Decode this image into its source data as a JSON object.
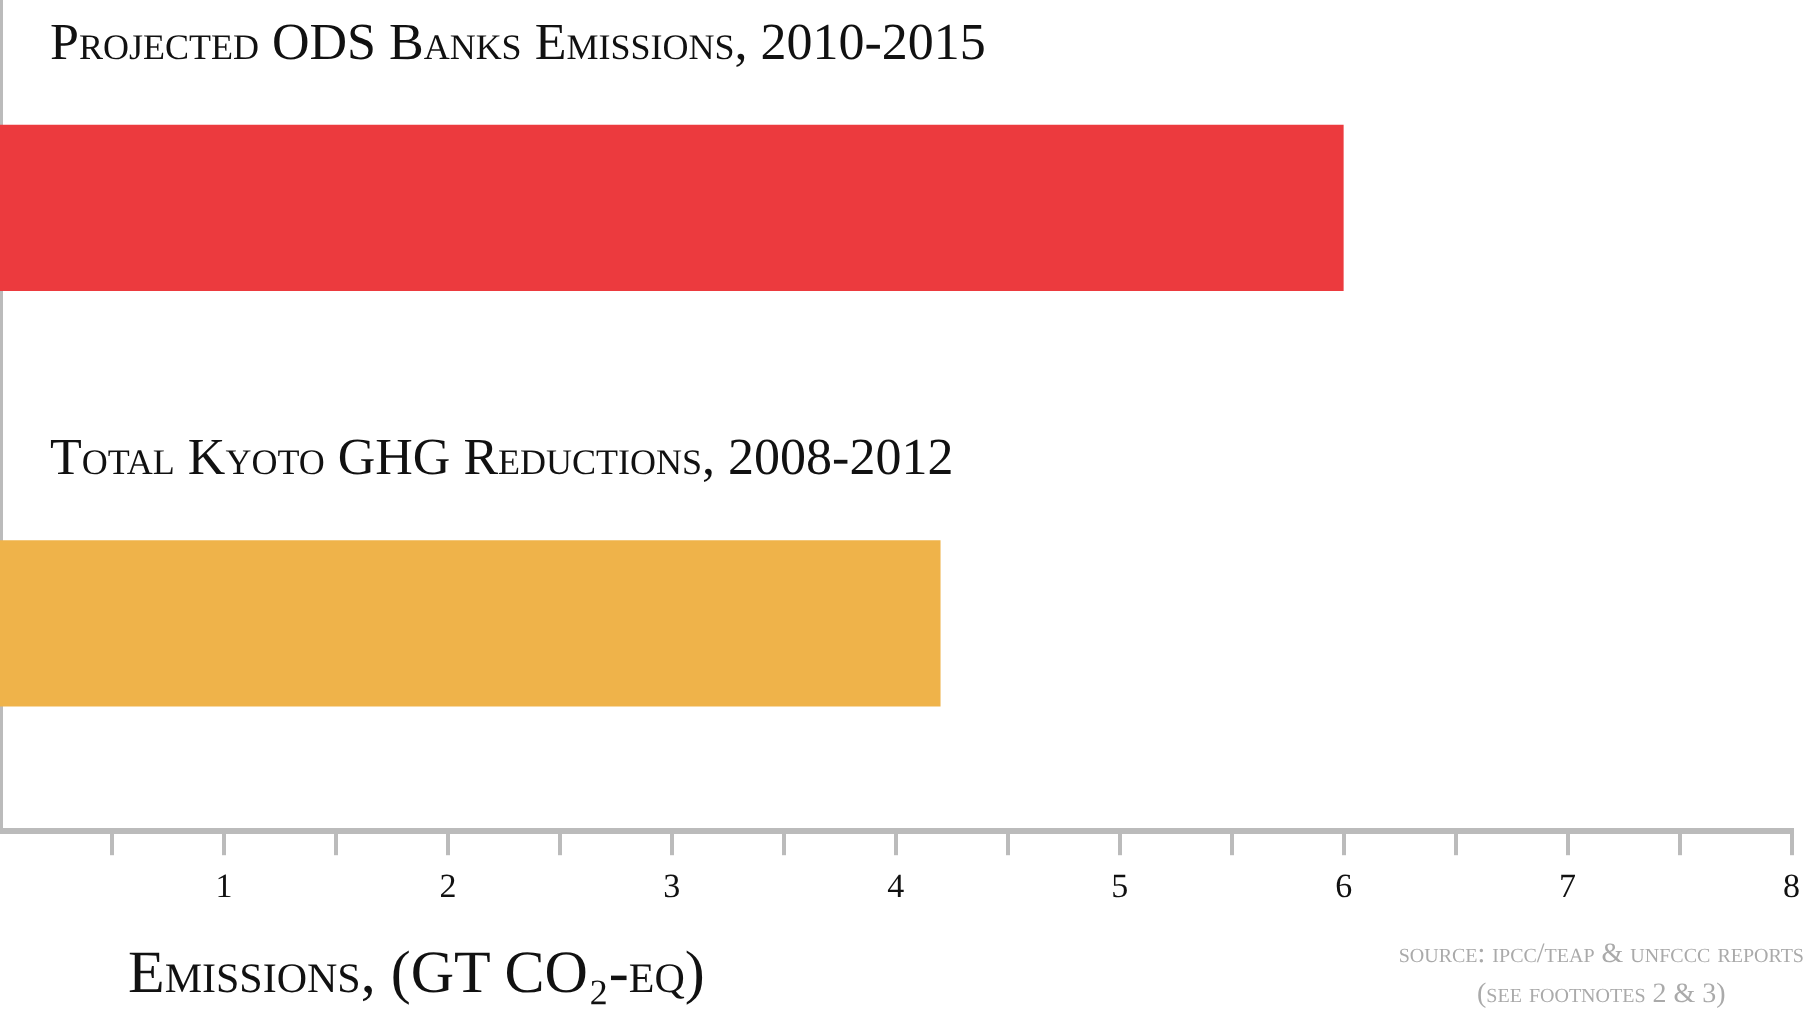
{
  "chart_data": {
    "type": "bar",
    "orientation": "horizontal",
    "categories": [
      "Projected ODS Banks Emissions, 2010-2015",
      "Total Kyoto GHG Reductions, 2008-2012"
    ],
    "values": [
      6.0,
      4.2
    ],
    "colors": [
      "#ec3a3e",
      "#efb34a"
    ],
    "xlabel": "Emissions, (GT CO₂-eq)",
    "xlim": [
      0,
      8
    ],
    "xticks": [
      {
        "value": 0.5,
        "label": null
      },
      1,
      {
        "value": 1.5,
        "label": null
      },
      2,
      {
        "value": 2.5,
        "label": null
      },
      3,
      {
        "value": 3.5,
        "label": null
      },
      4,
      {
        "value": 4.5,
        "label": null
      },
      5,
      {
        "value": 5.5,
        "label": null
      },
      6,
      {
        "value": 6.5,
        "label": null
      },
      7,
      {
        "value": 7.5,
        "label": null
      },
      8
    ],
    "annotations": [
      "source: ipcc/teap & unfccc reports",
      "(see footnotes 2 & 3)"
    ],
    "grid": false,
    "legend": false
  }
}
